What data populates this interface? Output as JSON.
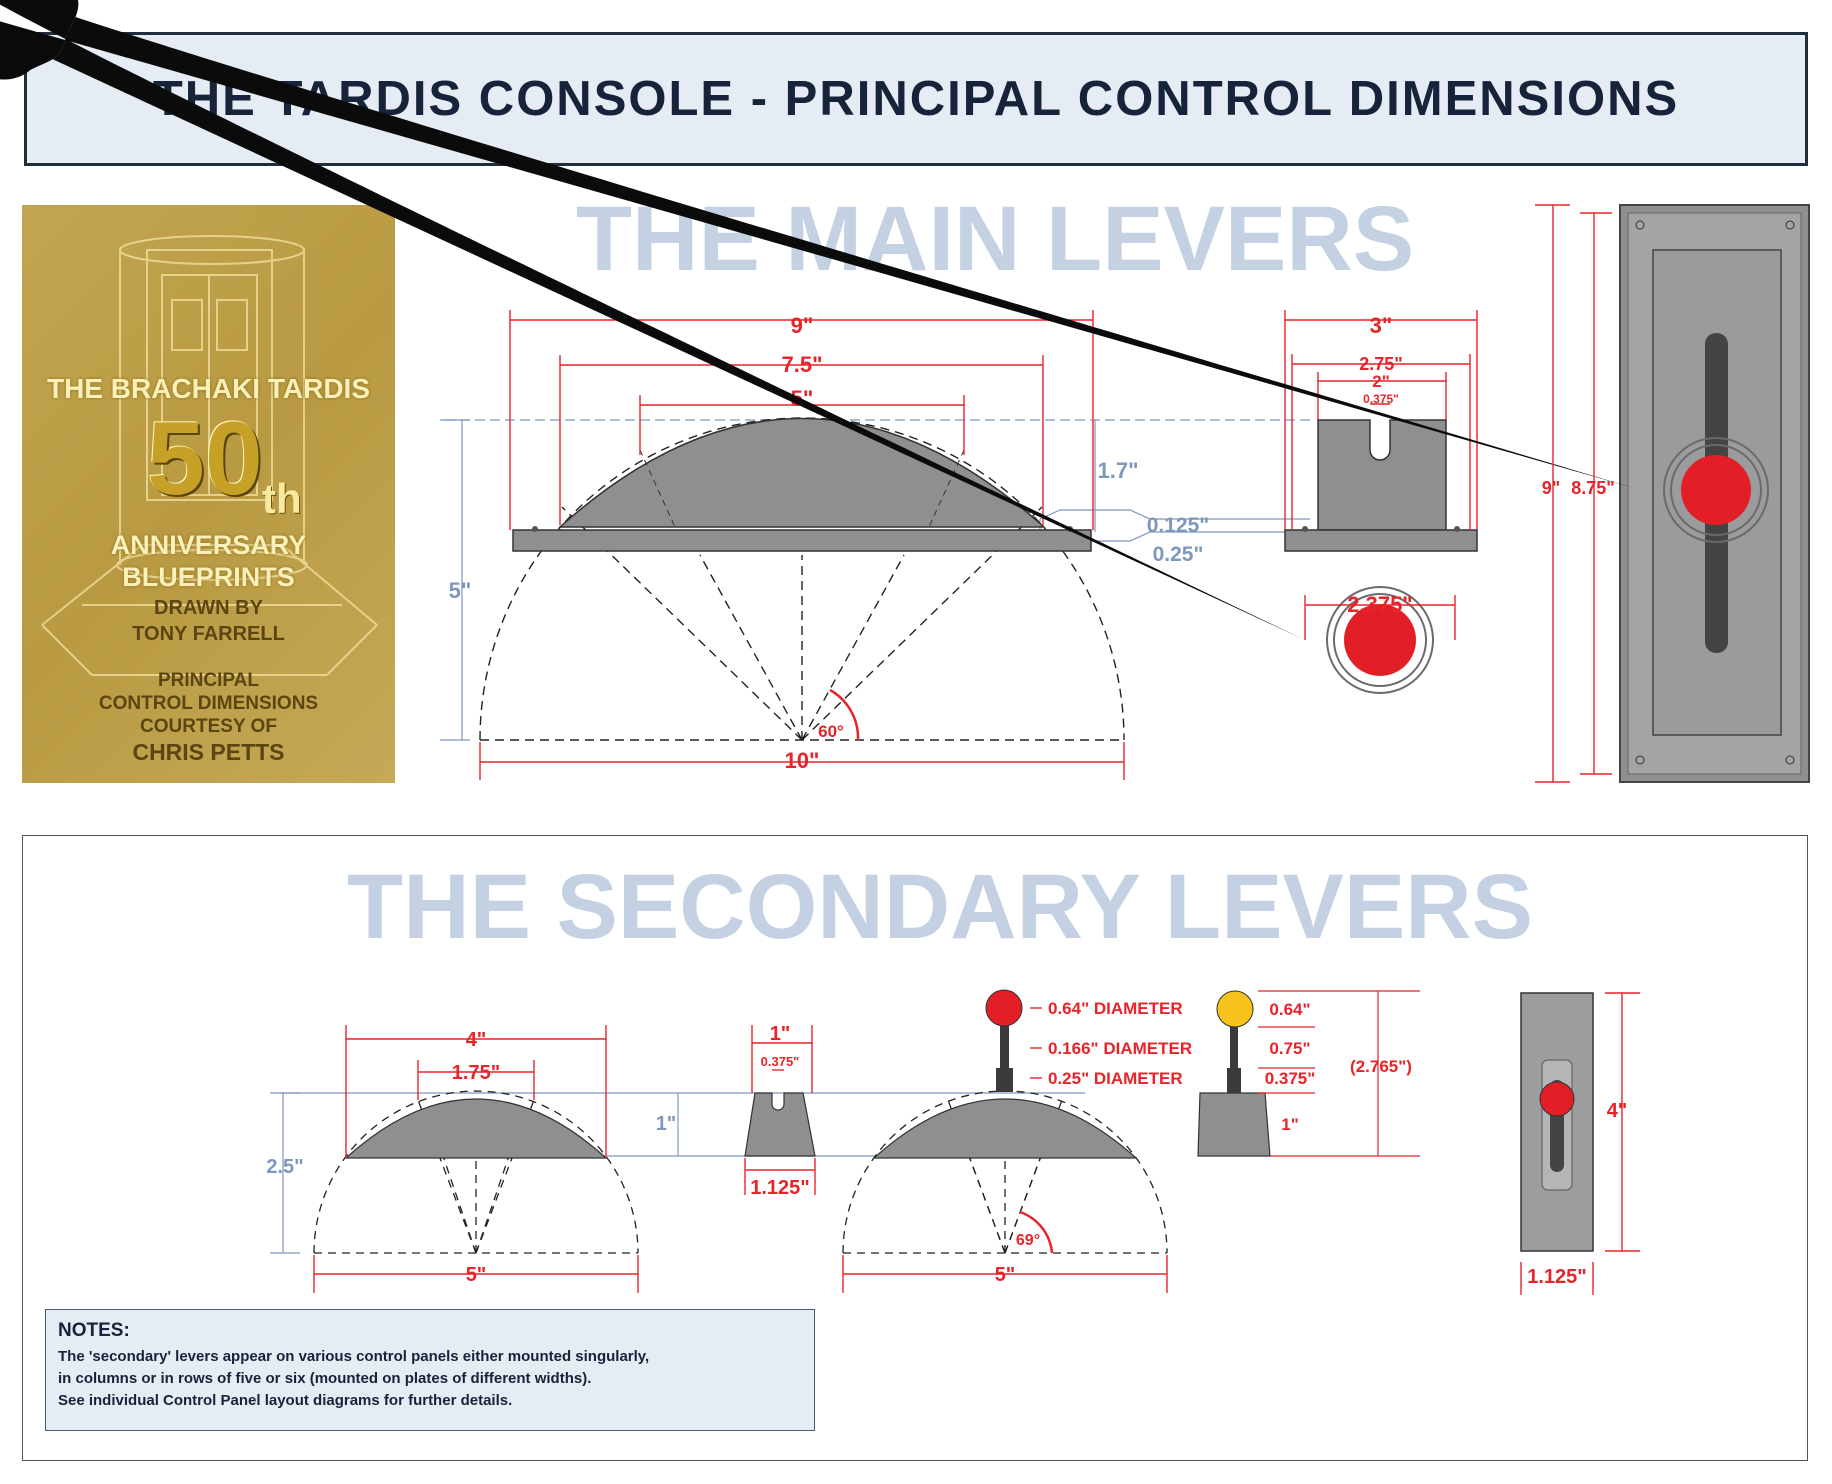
{
  "title": "THE TARDIS CONSOLE - PRINCIPAL CONTROL DIMENSIONS",
  "badge": {
    "line1": "THE BRACHAKI TARDIS",
    "big_number": "50",
    "suffix": "th",
    "line2": "ANNIVERSARY",
    "line3": "BLUEPRINTS",
    "line4": "DRAWN BY",
    "line5": "TONY FARRELL",
    "line6": "PRINCIPAL",
    "line7": "CONTROL DIMENSIONS",
    "line8": "COURTESY OF",
    "line9": "CHRIS PETTS"
  },
  "main_levers": {
    "heading": "THE MAIN LEVERS",
    "dims": {
      "w9": "9\"",
      "w7_5": "7.5\"",
      "w5": "5\"",
      "h1_7": "1.7\"",
      "h5": "5\"",
      "base10": "10\"",
      "angle60": "60°",
      "t0_125": "0.125\"",
      "t0_25": "0.25\"",
      "side3": "3\"",
      "side2_75": "2.75\"",
      "side2": "2\"",
      "side0_375": "0.375\"",
      "knob2_375": "2.375\"",
      "plate9": "9\"",
      "plate8_75": "8.75\""
    }
  },
  "secondary_levers": {
    "heading": "THE SECONDARY LEVERS",
    "dims": {
      "w4": "4\"",
      "w1_75": "1.75\"",
      "h2_5": "2.5\"",
      "h1": "1\"",
      "base5a": "5\"",
      "top1": "1\"",
      "slot0_375": "0.375\"",
      "bot1_125": "1.125\"",
      "base5b": "5\"",
      "angle69": "69°",
      "d064": "0.64\" DIAMETER",
      "d0166": "0.166\" DIAMETER",
      "d025": "0.25\" DIAMETER",
      "v064": "0.64\"",
      "v075": "0.75\"",
      "v0375": "0.375\"",
      "v1": "1\"",
      "total": "(2.765\")",
      "plate4": "4\"",
      "plate1_125": "1.125\""
    }
  },
  "notes": {
    "heading": "NOTES:",
    "lines": [
      "The 'secondary' levers appear on various control panels either mounted singularly,",
      "in columns or in rows of five or six (mounted on plates of different widths).",
      "See individual Control Panel layout diagrams for further details."
    ]
  },
  "colors": {
    "dimension": "#e8232a",
    "measure_blue": "#7d97bd",
    "heading_blue": "#c3d1e3",
    "part_gray": "#8e8f91",
    "knob_red": "#e21f26",
    "knob_yellow": "#f7c21b",
    "badge_gold": "#bd9e47"
  }
}
